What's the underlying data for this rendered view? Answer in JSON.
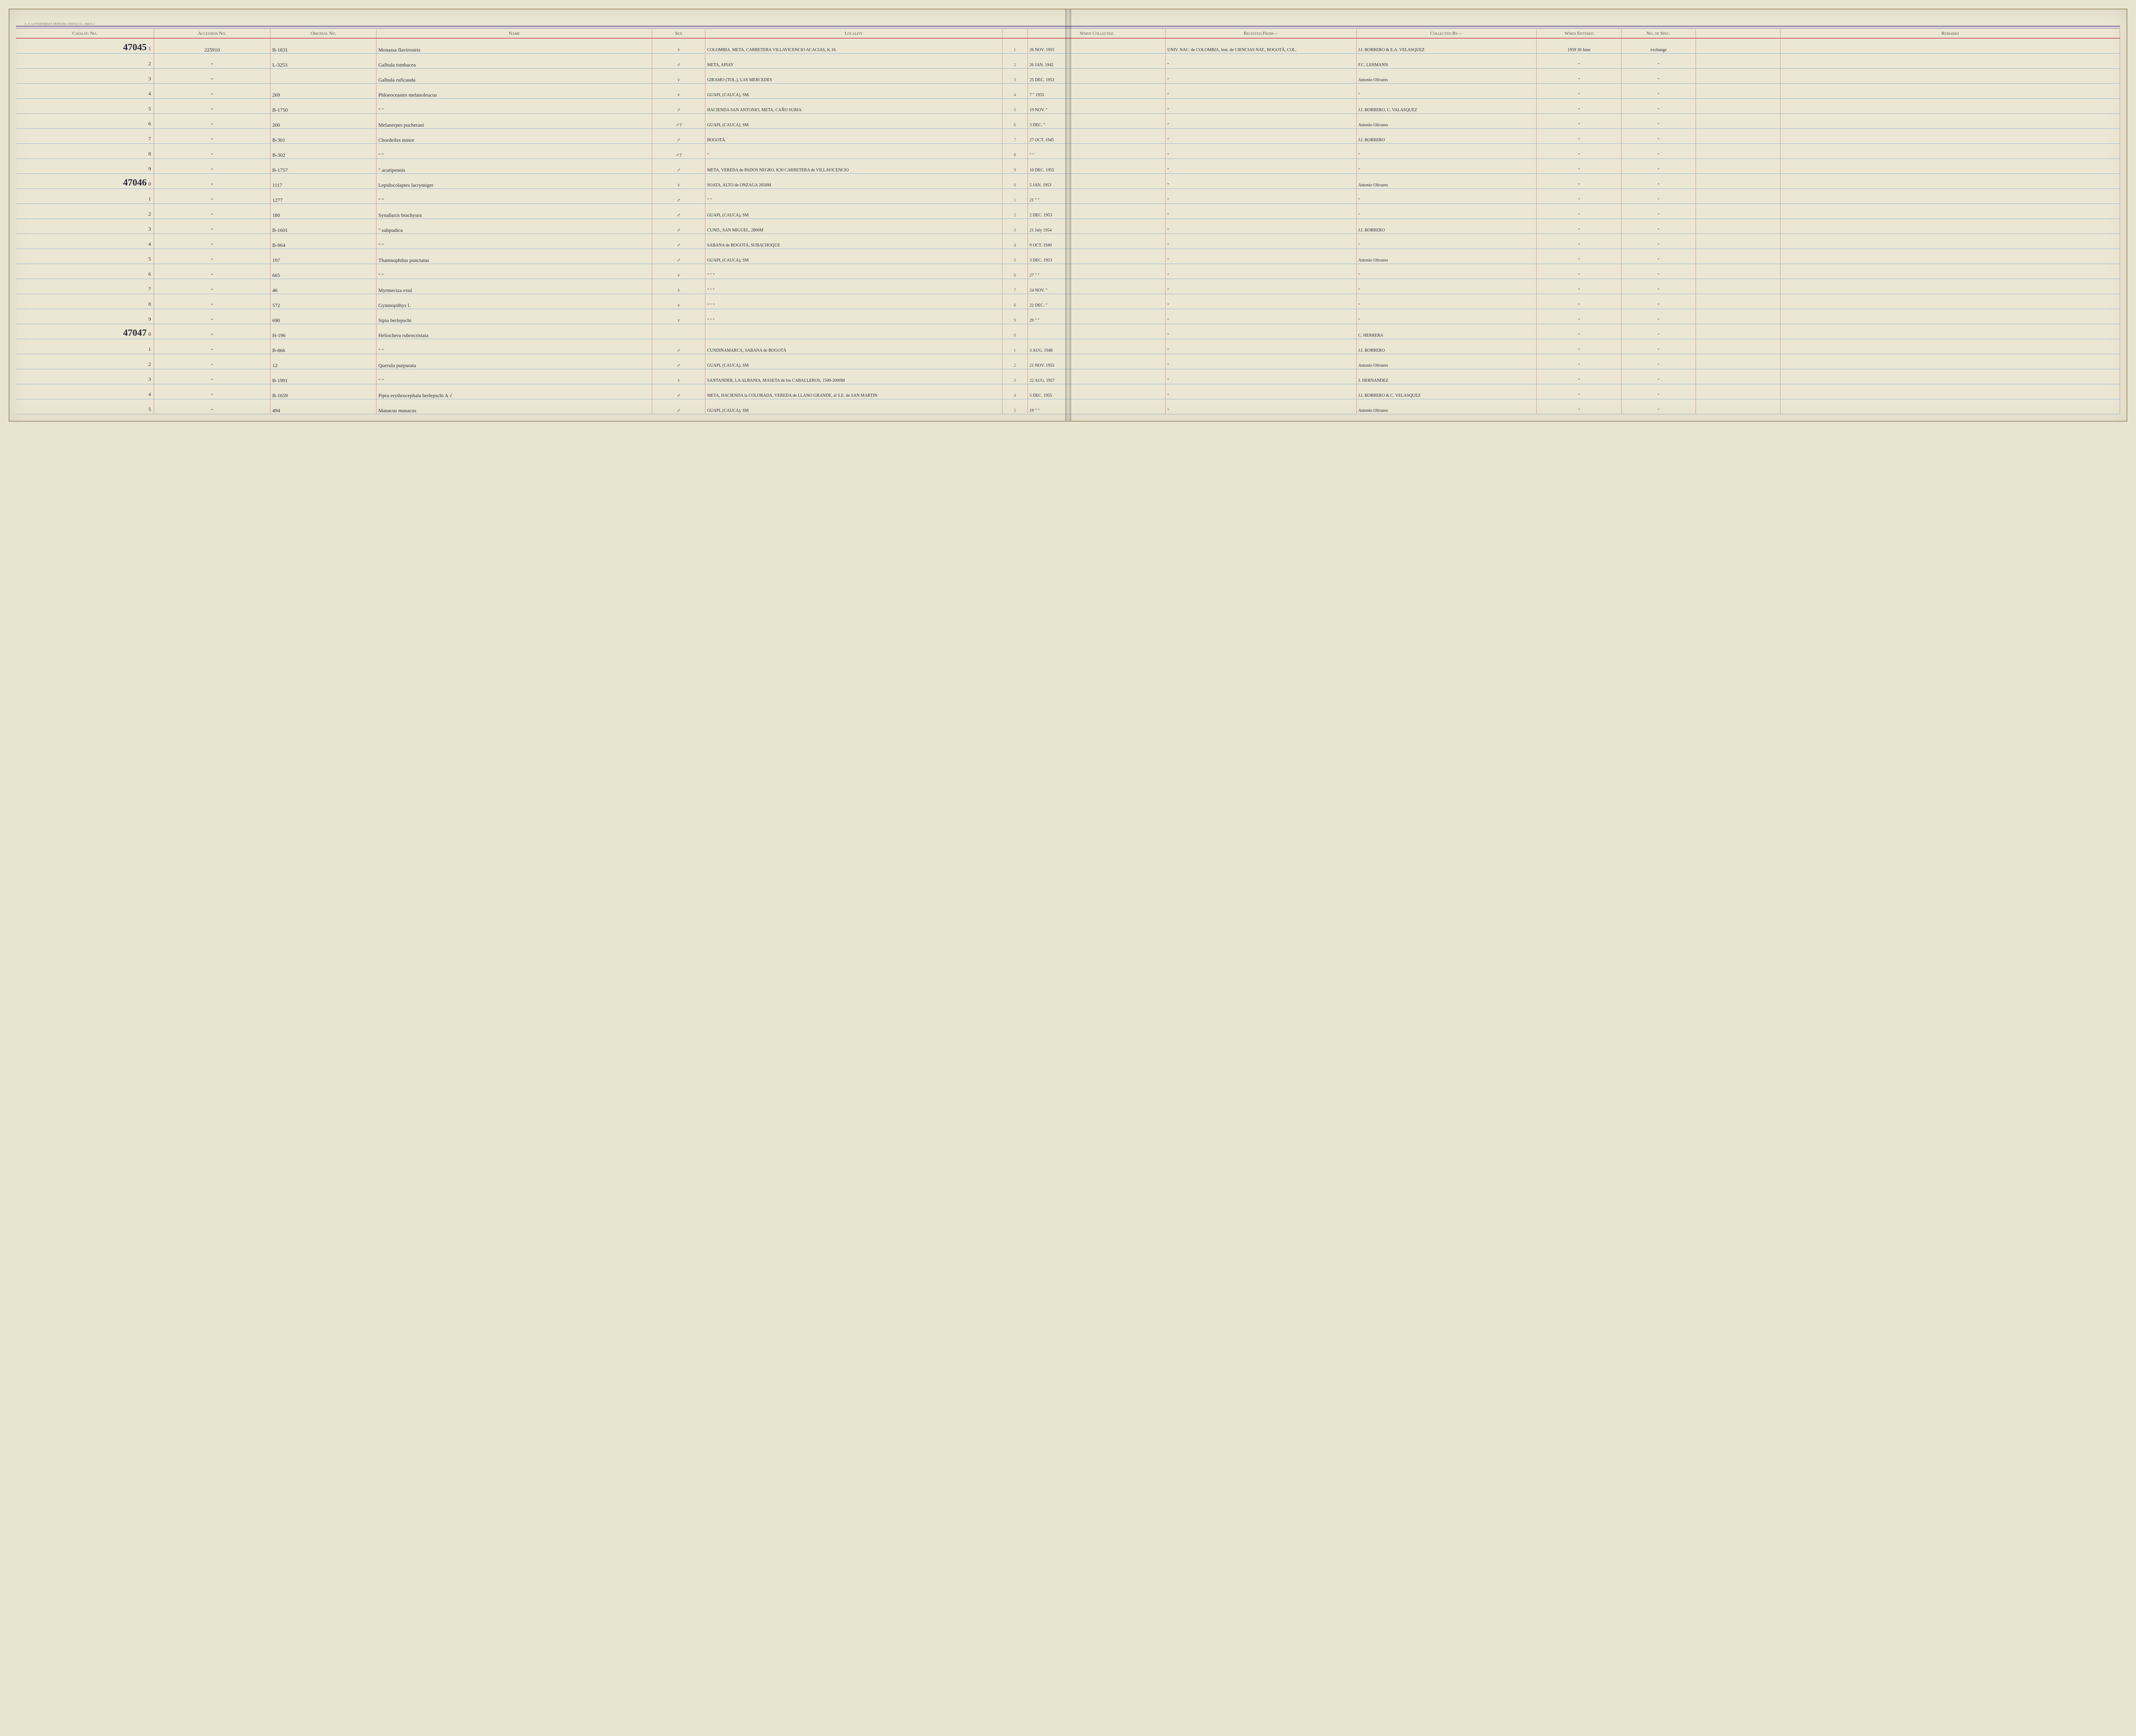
{
  "print_note": "U. S. GOVERNMENT PRINTING OFFICE   16—00015-1",
  "headers": {
    "catalog": "Catalog\nNo.",
    "accession": "Accession\nNo.",
    "original": "Original\nNo.",
    "name": "Name",
    "sex": "Sex",
    "locality": "Locality",
    "when_collected": "When\nCollected",
    "received": "Received From—",
    "collected_by": "Collected By—",
    "when_entered": "When\nEntered",
    "no_spec": "No.\nof\nSpec.",
    "remarks": "Remarks"
  },
  "rows": [
    {
      "catalog_big": "47045",
      "catalog_sub": "1",
      "accession": "225910",
      "original": "B-1831",
      "name": "Monassa flavirostris",
      "sex": "♀",
      "locality": "COLOMBIA. META, CARRETERA VILLAVICENCIO ACACIAS, K.16.",
      "idx": "1",
      "when": "26 NOV. 1955",
      "received": "UNIV. NAC. de COLOMBIA, Inst. de CIENCIAS NAT., BOGOTÁ, COL.",
      "collected": "J.I. BORRERO & E.A. VELASQUEZ",
      "entered": "1959 30 June",
      "spec": "exchange",
      "remarks": ""
    },
    {
      "catalog_big": "",
      "catalog_sub": "2",
      "accession": "\"",
      "original": "L-3253",
      "name": "Galbula tombacea",
      "sex": "♂",
      "locality": "META, APIAY",
      "idx": "2",
      "when": "26 JAN. 1942",
      "received": "\"",
      "collected": "F.C. LEHMANN",
      "entered": "\"",
      "spec": "\"",
      "remarks": ""
    },
    {
      "catalog_big": "",
      "catalog_sub": "3",
      "accession": "\"",
      "original": "",
      "name": "Galbula ruficauda",
      "sex": "♀",
      "locality": "GIRAMO (TOL.), LAS MERCEDES",
      "idx": "3",
      "when": "25 DEC. 1953",
      "received": "\"",
      "collected": "Antonio Olivares",
      "entered": "\"",
      "spec": "\"",
      "remarks": ""
    },
    {
      "catalog_big": "",
      "catalog_sub": "4",
      "accession": "\"",
      "original": "269",
      "name": "Phloeoceastes melanoleucus",
      "sex": "♀",
      "locality": "GUAPI, (CAUCA), SM.",
      "idx": "4",
      "when": "7 \" 1955",
      "received": "\"",
      "collected": "\"",
      "entered": "\"",
      "spec": "\"",
      "remarks": ""
    },
    {
      "catalog_big": "",
      "catalog_sub": "5",
      "accession": "\"",
      "original": "B-1750",
      "name": "\"   \"",
      "sex": "♂",
      "locality": "HACIENDA SAN ANTONIO, META, CAÑO SURIA",
      "idx": "5",
      "when": "19 NOV. \"",
      "received": "\"",
      "collected": "J.I. BORRERO, C. VALASQUEZ",
      "entered": "\"",
      "spec": "\"",
      "remarks": ""
    },
    {
      "catalog_big": "",
      "catalog_sub": "6",
      "accession": "\"",
      "original": "200",
      "name": "Melanerpes pucherani",
      "sex": "♂?",
      "locality": "GUAPI, (CAUCA), SM",
      "idx": "6",
      "when": "3 DEC. \"",
      "received": "\"",
      "collected": "Antonio Olivares",
      "entered": "\"",
      "spec": "\"",
      "remarks": ""
    },
    {
      "catalog_big": "",
      "catalog_sub": "7",
      "accession": "\"",
      "original": "B-301",
      "name": "Chordeiles minor",
      "sex": "♂",
      "locality": "BOGOTÁ",
      "idx": "7",
      "when": "27 OCT. 1945",
      "received": "\"",
      "collected": "J.I. BORRERO",
      "entered": "\"",
      "spec": "\"",
      "remarks": ""
    },
    {
      "catalog_big": "",
      "catalog_sub": "8",
      "accession": "\"",
      "original": "B-302",
      "name": "\"   \"",
      "sex": "♂?",
      "locality": "\"",
      "idx": "8",
      "when": "\"   \"",
      "received": "\"",
      "collected": "\"",
      "entered": "\"",
      "spec": "\"",
      "remarks": ""
    },
    {
      "catalog_big": "",
      "catalog_sub": "9",
      "accession": "\"",
      "original": "B-1757",
      "name": "\"   acutipennis",
      "sex": "♂",
      "locality": "META, VEREDA de PADOS NEGRO, K30 CARRETERA de VILLAVICENCIO",
      "idx": "9",
      "when": "10 DEC. 1955",
      "received": "\"",
      "collected": "\"",
      "entered": "\"",
      "spec": "\"",
      "remarks": ""
    },
    {
      "catalog_big": "47046",
      "catalog_sub": "0",
      "accession": "\"",
      "original": "1117",
      "name": "Lepidocolaptes lacrymiger",
      "sex": "♀",
      "locality": "SOATA, ALTO de ONZAGA 2050M",
      "idx": "0",
      "when": "5 JAN. 1953",
      "received": "\"",
      "collected": "Antonio Olivares",
      "entered": "\"",
      "spec": "\"",
      "remarks": ""
    },
    {
      "catalog_big": "",
      "catalog_sub": "1",
      "accession": "\"",
      "original": "1277",
      "name": "\"   \"",
      "sex": "♂",
      "locality": "\"   \"",
      "idx": "1",
      "when": "21 \"  \"",
      "received": "\"",
      "collected": "\"",
      "entered": "\"",
      "spec": "\"",
      "remarks": ""
    },
    {
      "catalog_big": "",
      "catalog_sub": "2",
      "accession": "\"",
      "original": "180",
      "name": "Synallaxis brachyura",
      "sex": "♂",
      "locality": "GUAPI, (CAUCA), SM",
      "idx": "2",
      "when": "2 DEC. 1953",
      "received": "\"",
      "collected": "\"",
      "entered": "\"",
      "spec": "\"",
      "remarks": ""
    },
    {
      "catalog_big": "",
      "catalog_sub": "3",
      "accession": "\"",
      "original": "B-1601",
      "name": "\"   subpudica",
      "sex": "♂",
      "locality": "CUND., SAN MIGUEL, 2800M",
      "idx": "3",
      "when": "21 July 1954",
      "received": "\"",
      "collected": "J.I. BORRERO",
      "entered": "\"",
      "spec": "\"",
      "remarks": ""
    },
    {
      "catalog_big": "",
      "catalog_sub": "4",
      "accession": "\"",
      "original": "B-964",
      "name": "\"   \"",
      "sex": "♂",
      "locality": "SABANA de BOGOTÁ, SUBACHOQUE",
      "idx": "4",
      "when": "9 OCT. 1949",
      "received": "\"",
      "collected": "\"",
      "entered": "\"",
      "spec": "\"",
      "remarks": ""
    },
    {
      "catalog_big": "",
      "catalog_sub": "5",
      "accession": "\"",
      "original": "197",
      "name": "Thamnophilus punctatus",
      "sex": "♂",
      "locality": "GUAPI, (CAUCA), SM",
      "idx": "5",
      "when": "3 DEC. 1953",
      "received": "\"",
      "collected": "Antonio Olivares",
      "entered": "\"",
      "spec": "\"",
      "remarks": ""
    },
    {
      "catalog_big": "",
      "catalog_sub": "6",
      "accession": "\"",
      "original": "665",
      "name": "\"   \"",
      "sex": "♀",
      "locality": "\"   \"   \"",
      "idx": "6",
      "when": "27 \"  \"",
      "received": "\"",
      "collected": "\"",
      "entered": "\"",
      "spec": "\"",
      "remarks": ""
    },
    {
      "catalog_big": "",
      "catalog_sub": "7",
      "accession": "\"",
      "original": "46",
      "name": "Myrmeciza exul",
      "sex": "♀",
      "locality": "\"   \"   \"",
      "idx": "7",
      "when": "24 NOV. \"",
      "received": "\"",
      "collected": "\"",
      "entered": "\"",
      "spec": "\"",
      "remarks": ""
    },
    {
      "catalog_big": "",
      "catalog_sub": "8",
      "accession": "\"",
      "original": "572",
      "name": "Gymnopithys l.",
      "sex": "♀",
      "locality": "\"   \"   \"",
      "idx": "8",
      "when": "22 DEC. \"",
      "received": "\"",
      "collected": "\"",
      "entered": "\"",
      "spec": "\"",
      "remarks": ""
    },
    {
      "catalog_big": "",
      "catalog_sub": "9",
      "accession": "\"",
      "original": "690",
      "name": "Sipia berlepschi",
      "sex": "♀",
      "locality": "\"   \"   \"",
      "idx": "9",
      "when": "29 \"  \"",
      "received": "\"",
      "collected": "\"",
      "entered": "\"",
      "spec": "\"",
      "remarks": ""
    },
    {
      "catalog_big": "47047",
      "catalog_sub": "0",
      "accession": "\"",
      "original": "H-196",
      "name": "Heliochera rubrocristata",
      "sex": "",
      "locality": "",
      "idx": "0",
      "when": "",
      "received": "\"",
      "collected": "C. HERRERA",
      "entered": "\"",
      "spec": "\"",
      "remarks": ""
    },
    {
      "catalog_big": "",
      "catalog_sub": "1",
      "accession": "\"",
      "original": "B-866",
      "name": "\"   \"",
      "sex": "♂",
      "locality": "CUNDINAMARCA, SABANA de BOGOTÁ",
      "idx": "1",
      "when": "3 AUG. 1948",
      "received": "\"",
      "collected": "J.I. BORRERO",
      "entered": "\"",
      "spec": "\"",
      "remarks": ""
    },
    {
      "catalog_big": "",
      "catalog_sub": "2",
      "accession": "\"",
      "original": "12",
      "name": "Querula purpurata",
      "sex": "♂",
      "locality": "GUAPI, (CAUCA), SM",
      "idx": "2",
      "when": "21 NOV. 1955",
      "received": "\"",
      "collected": "Antonio Olivares",
      "entered": "\"",
      "spec": "\"",
      "remarks": ""
    },
    {
      "catalog_big": "",
      "catalog_sub": "3",
      "accession": "\"",
      "original": "B-1991",
      "name": "\"   \"",
      "sex": "♀",
      "locality": "SANTANDER, LA ALBANIA, MASETA de los CABALLEROS, 1500-2000M",
      "idx": "3",
      "when": "22 AUG. 1957",
      "received": "\"",
      "collected": "J. HERNANDEZ",
      "entered": "\"",
      "spec": "\"",
      "remarks": ""
    },
    {
      "catalog_big": "",
      "catalog_sub": "4",
      "accession": "\"",
      "original": "B-1659",
      "name": "Pipra erythrocephala berlepschi A √",
      "sex": "♂",
      "locality": "META, HACIENDA la COLORADA, VEREDA de LLANO GRANDE, al S.E. de SAN MARTIN",
      "idx": "4",
      "when": "5 DEC. 1955",
      "received": "\"",
      "collected": "J.I. BORRERO & C. VELASQUEZ",
      "entered": "\"",
      "spec": "\"",
      "remarks": ""
    },
    {
      "catalog_big": "",
      "catalog_sub": "5",
      "accession": "\"",
      "original": "494",
      "name": "Manacus manacus",
      "sex": "♂",
      "locality": "GUAPI, (CAUCA), SM",
      "idx": "5",
      "when": "19 \"  \"",
      "received": "\"",
      "collected": "Antonio Olivares",
      "entered": "\"",
      "spec": "\"",
      "remarks": ""
    }
  ],
  "colors": {
    "page_bg": "#ebe7d4",
    "rule_red": "#c96a6a",
    "rule_blue": "#9fb8d4",
    "rule_purple": "#7a5ca8",
    "ink": "#2a2a3a"
  }
}
